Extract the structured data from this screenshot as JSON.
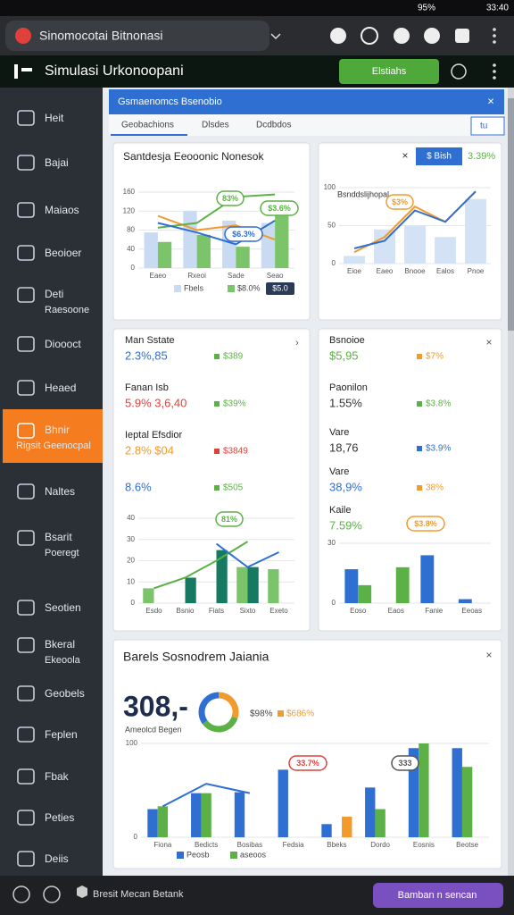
{
  "status_bar": {
    "battery": "95%",
    "time": "33:40"
  },
  "browser": {
    "tab_title": "Sinomocotai Bitnonasi"
  },
  "app_header": {
    "title": "Simulasi Urkonoopani",
    "button": "Elstiahs"
  },
  "sidebar": {
    "items": [
      {
        "label": "Heit"
      },
      {
        "label": "Bajai"
      },
      {
        "label": "Maiaos"
      },
      {
        "label": "Beoioer"
      },
      {
        "label": "Deti",
        "sublabel": "Raesoone"
      },
      {
        "label": "Dioooct"
      },
      {
        "label": "Heaed"
      },
      {
        "label": "Bhnir",
        "sublabel": "Rigsit Geenocpal",
        "active": true
      },
      {
        "label": "Naltes"
      },
      {
        "label": "Bsarit",
        "sublabel": "Poeregt"
      },
      {
        "label": "Seotien"
      },
      {
        "label": "Bkeral",
        "sublabel": "Ekeoola"
      },
      {
        "label": "Geobels"
      },
      {
        "label": "Feplen"
      },
      {
        "label": "Fbak"
      },
      {
        "label": "Peties"
      },
      {
        "label": "Deiis"
      }
    ]
  },
  "toolbar": {
    "title": "Gsmaenomcs Bsenobio",
    "tabs": [
      "Geobachions",
      "Dlsdes",
      "Dcdbdos"
    ],
    "dropdown": "tu"
  },
  "panels": [
    {
      "title": "Santdesja Eeooonic Nonesok",
      "badge": "$5.0",
      "chart": {
        "type": "bar",
        "categories": [
          "Eaeo",
          "Rxeoi",
          "Sade",
          "Seao"
        ],
        "ylim": [
          0,
          160
        ],
        "yticks": [
          0,
          40,
          80,
          120,
          160
        ],
        "series": [
          {
            "name": "Fbels",
            "type": "bar",
            "color": "#c8dbf3",
            "values": [
              75,
              120,
              100,
              95
            ]
          },
          {
            "name": "$8.0%",
            "type": "bar",
            "color": "#7cc46a",
            "values": [
              55,
              70,
              45,
              110
            ]
          },
          {
            "type": "line",
            "color": "#f39a2c",
            "values": [
              110,
              80,
              90,
              60
            ]
          },
          {
            "type": "line",
            "color": "#5cb146",
            "values": [
              85,
              95,
              150,
              155
            ]
          },
          {
            "type": "line",
            "color": "#2f6fd1",
            "values": [
              95,
              75,
              50,
              100
            ]
          }
        ],
        "annotations": [
          {
            "text": "83%",
            "color": "#5cb146"
          },
          {
            "text": "$3.6%",
            "color": "#5cb146"
          },
          {
            "text": "$6.3%",
            "color": "#2f6fd1"
          }
        ]
      }
    },
    {
      "button": "$ Bish",
      "stat": "3.39%",
      "subtitle": "Bsnddslijhopal",
      "chart": {
        "type": "bar",
        "categories": [
          "Eioe",
          "Eaeo",
          "Bnooe",
          "Ealos",
          "Pnoe"
        ],
        "ylim": [
          0,
          100
        ],
        "yticks": [
          0,
          50,
          100
        ],
        "series": [
          {
            "type": "bar",
            "color": "#d3e2f5",
            "values": [
              10,
              45,
              50,
              35,
              85
            ]
          },
          {
            "type": "line",
            "color": "#f39a2c",
            "values": [
              15,
              35,
              75,
              55,
              95
            ]
          },
          {
            "type": "line",
            "color": "#2f6fd1",
            "values": [
              20,
              30,
              70,
              55,
              95
            ]
          }
        ],
        "annotations": [
          {
            "text": "$3%",
            "color": "#f39a2c"
          }
        ]
      }
    },
    {
      "metrics": [
        {
          "label": "Man Sstate",
          "value": "2.3%,85",
          "value_color": "#2f6fd1",
          "tag": "$389",
          "tag_color": "#5cb146"
        },
        {
          "label": "Fanan Isb",
          "value": "5.9% 3,6,40",
          "value_color": "#e0403a",
          "tag": "$39%",
          "tag_color": "#5cb146"
        },
        {
          "label": "Ieptal Efsdior",
          "value": "2.8% $04",
          "value_color": "#f39a2c",
          "tag": "$3849",
          "tag_color": "#e0403a"
        },
        {
          "value": "8.6%",
          "value_color": "#2f6fd1",
          "tag": "$505",
          "tag_color": "#5cb146"
        }
      ],
      "chart": {
        "type": "bar",
        "categories": [
          "Esdo",
          "Bsnio",
          "Fiats",
          "Sixto",
          "Exeto"
        ],
        "ylim": [
          0,
          40
        ],
        "yticks": [
          0,
          10,
          20,
          30,
          40
        ],
        "series": [
          {
            "type": "bar",
            "color": "#7cc46a",
            "values": [
              7,
              null,
              null,
              17,
              16
            ]
          },
          {
            "type": "bar",
            "color": "#167a62",
            "values": [
              null,
              12,
              25,
              17,
              null
            ]
          },
          {
            "type": "line",
            "color": "#5cb146",
            "values": [
              7,
              12,
              20,
              29,
              null
            ]
          },
          {
            "type": "line",
            "color": "#2f6fd1",
            "values": [
              null,
              null,
              28,
              17,
              24
            ]
          }
        ],
        "annotations": [
          {
            "text": "81%",
            "color": "#5cb146"
          }
        ]
      }
    },
    {
      "metrics": [
        {
          "label": "Bsnoioe",
          "value": "$5,95",
          "value_color": "#5cb146",
          "tag": "$7%",
          "tag_color": "#f39a2c"
        },
        {
          "label": "Paonilon",
          "value": "1.55%",
          "value_color": "#333333",
          "tag": "$3.8%",
          "tag_color": "#5cb146"
        },
        {
          "label": "Vare",
          "value": "18,76",
          "value_color": "#333333",
          "tag": "$3.9%",
          "tag_color": "#2f6fd1"
        },
        {
          "label": "Vare",
          "value": "38,9%",
          "value_color": "#2f6fd1",
          "tag": "38%",
          "tag_color": "#f39a2c"
        },
        {
          "label": "Kaile",
          "value": "7.59%",
          "value_color": "#5cb146"
        }
      ],
      "chart": {
        "type": "bar",
        "categories": [
          "Eoso",
          "Eaos",
          "Fanie",
          "Eeoas"
        ],
        "ylim": [
          0,
          30
        ],
        "yticks": [
          0,
          30
        ],
        "series": [
          {
            "type": "bar",
            "color": "#2f6fd1",
            "values": [
              17,
              null,
              24,
              2
            ]
          },
          {
            "type": "bar",
            "color": "#5cb146",
            "values": [
              9,
              18,
              null,
              null
            ]
          }
        ],
        "annotations": [
          {
            "text": "$3.8%",
            "color": "#f39a2c"
          }
        ]
      }
    }
  ],
  "summary": {
    "title": "Barels Sosnodrem Jaiania",
    "big_value": "308,-",
    "caption": "Ameolcd Begen",
    "stats": [
      "$98%",
      "$686%"
    ],
    "donut": {
      "values": [
        30,
        35,
        35
      ],
      "colors": [
        "#f39a2c",
        "#5cb146",
        "#2f6fd1"
      ]
    },
    "chart": {
      "type": "bar",
      "categories": [
        "Fiona",
        "Bedicts",
        "Bosibas",
        "Fedsia",
        "Bbeks",
        "Dordo",
        "Eosnis",
        "Beotse"
      ],
      "ylim": [
        0,
        100
      ],
      "yticks": [
        0,
        100
      ],
      "series": [
        {
          "name": "Peosb",
          "type": "bar",
          "color": "#2f6fd1",
          "values": [
            30,
            47,
            48,
            72,
            14,
            53,
            95,
            95
          ]
        },
        {
          "name": "aseoos",
          "type": "bar",
          "color": "#5cb146",
          "values": [
            33,
            47,
            null,
            null,
            null,
            30,
            100,
            75
          ]
        },
        {
          "type": "bar",
          "color": "#f39a2c",
          "values": [
            null,
            null,
            null,
            null,
            22,
            null,
            null,
            null
          ]
        },
        {
          "type": "line",
          "color": "#2f6fd1",
          "values": [
            33,
            57,
            47,
            null,
            null,
            null,
            null,
            null
          ]
        }
      ],
      "annotations": [
        {
          "text": "33.7%",
          "color": "#e0403a"
        },
        {
          "text": "333",
          "color": "#555555"
        }
      ]
    }
  },
  "footer": {
    "text": "Bresit Mecan Betank",
    "button": "Bamban n sencan"
  }
}
